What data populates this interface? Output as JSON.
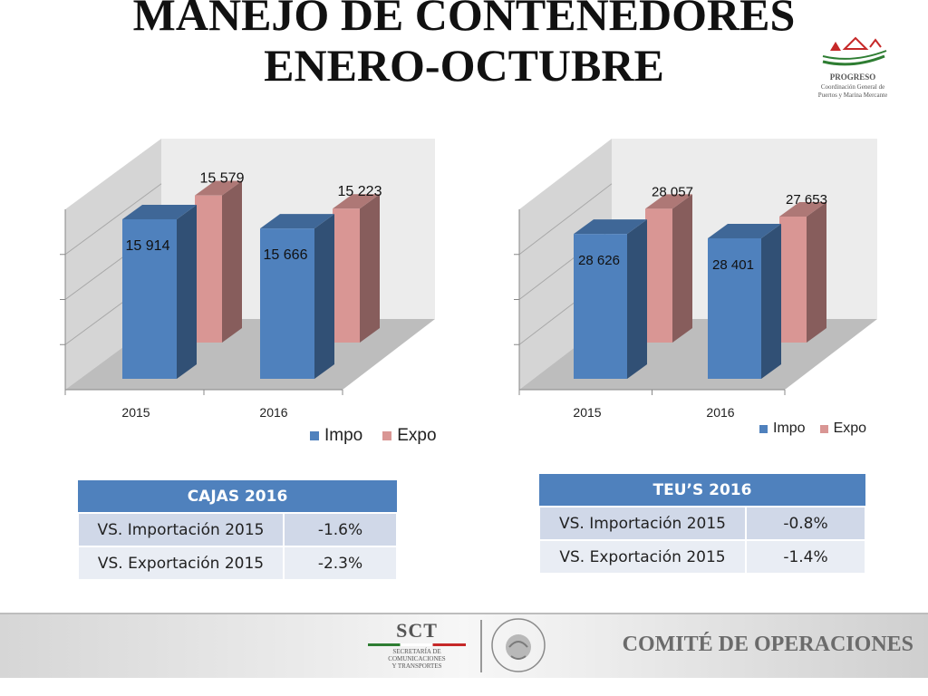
{
  "title": {
    "line1": "MANEJO DE CONTENEDORES",
    "line2": "ENERO-OCTUBRE"
  },
  "logo_top_right": {
    "name": "PROGRESO",
    "line1": "Coordinación General de",
    "line2": "Puertos y Marina Mercante"
  },
  "chart_data": [
    {
      "type": "bar",
      "categories": [
        "2015",
        "2016"
      ],
      "series": [
        {
          "name": "Impo",
          "values": [
            15914,
            15666
          ],
          "labels": [
            "15 914",
            "15 666"
          ]
        },
        {
          "name": "Expo",
          "values": [
            15579,
            15223
          ],
          "labels": [
            "15 579",
            "15 223"
          ]
        }
      ],
      "colors": [
        "#4f81bd",
        "#d99694"
      ],
      "legend": "bottom-right",
      "grid": true
    },
    {
      "type": "bar",
      "categories": [
        "2015",
        "2016"
      ],
      "series": [
        {
          "name": "Impo",
          "values": [
            28626,
            28401
          ],
          "labels": [
            "28 626",
            "28 401"
          ]
        },
        {
          "name": "Expo",
          "values": [
            28057,
            27653
          ],
          "labels": [
            "28 057",
            "27 653"
          ]
        }
      ],
      "colors": [
        "#4f81bd",
        "#d99694"
      ],
      "legend": "bottom-right",
      "grid": true
    }
  ],
  "tables": [
    {
      "header": "CAJAS 2016",
      "rows": [
        {
          "label": "VS.  Importación 2015",
          "value": "-1.6%"
        },
        {
          "label": "VS. Exportación 2015",
          "value": "-2.3%"
        }
      ]
    },
    {
      "header": "TEU’S 2016",
      "rows": [
        {
          "label": "VS. Importación 2015",
          "value": "-0.8%"
        },
        {
          "label": "VS. Exportación 2015",
          "value": "-1.4%"
        }
      ]
    }
  ],
  "footer": {
    "sct_abbr": "SCT",
    "sct_line1": "SECRETARÍA DE",
    "sct_line2": "COMUNICACIONES",
    "sct_line3": "Y TRANSPORTES",
    "seal_text": "ESTADOS UNIDOS MEXICANOS",
    "comite": "COMITÉ DE OPERACIONES"
  },
  "colors": {
    "impo": "#4f81bd",
    "expo": "#d99694",
    "table_header": "#4f81bd"
  }
}
